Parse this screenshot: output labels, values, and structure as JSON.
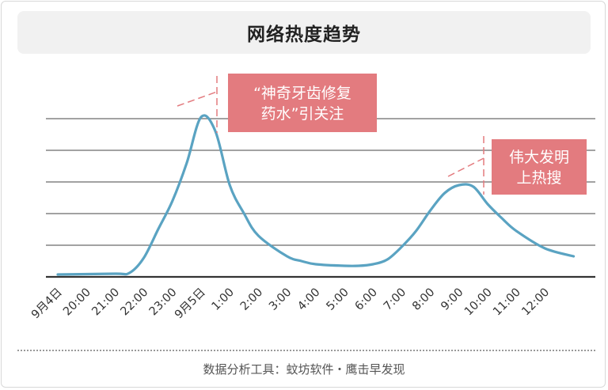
{
  "header": {
    "title": "网络热度趋势"
  },
  "footer": {
    "source": "数据分析工具：蚊坊软件・鹰击早发现"
  },
  "colors": {
    "line": "#5aa3c2",
    "annotation_bg": "#e37b7f",
    "annotation_text": "#ffffff",
    "grid": "#6b6b6b",
    "baseline": "#333333"
  },
  "chart_data": {
    "type": "line",
    "title": "网络热度趋势",
    "xlabel": "",
    "ylabel": "",
    "grid": true,
    "y_tick_labels_shown": false,
    "ylim": [
      0,
      100
    ],
    "categories": [
      "9月4日",
      "20:00",
      "21:00",
      "22:00",
      "23:00",
      "9月5日",
      "1:00",
      "2:00",
      "3:00",
      "4:00",
      "5:00",
      "6:00",
      "7:00",
      "8:00",
      "9:00",
      "10:00",
      "11:00",
      "12:00"
    ],
    "x": [
      0,
      2,
      2.5,
      3,
      3.5,
      4,
      4.5,
      5,
      5.5,
      6,
      6.5,
      7,
      8,
      8.5,
      9,
      10,
      10.5,
      11,
      11.5,
      12,
      12.5,
      13,
      13.5,
      14,
      14.5,
      15,
      15.5,
      16,
      17,
      18
    ],
    "values": [
      1.5,
      2,
      2.5,
      12,
      30,
      48,
      72,
      101,
      92,
      58,
      40,
      26,
      13,
      10,
      8,
      7,
      7,
      8,
      11,
      19,
      29,
      42,
      53,
      58,
      57,
      46,
      37,
      29,
      18,
      13
    ],
    "annotations": [
      {
        "lines": [
          "“神奇牙齿修复",
          "药水”引关注"
        ],
        "x": 4
      },
      {
        "lines": [
          "伟大发明",
          "上热搜"
        ],
        "x": 14
      }
    ]
  }
}
